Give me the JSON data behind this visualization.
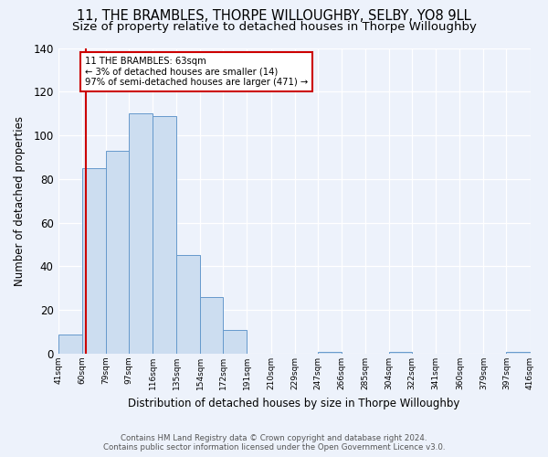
{
  "title": "11, THE BRAMBLES, THORPE WILLOUGHBY, SELBY, YO8 9LL",
  "subtitle": "Size of property relative to detached houses in Thorpe Willoughby",
  "xlabel": "Distribution of detached houses by size in Thorpe Willoughby",
  "ylabel": "Number of detached properties",
  "bin_edges": [
    41,
    60,
    79,
    97,
    116,
    135,
    154,
    172,
    191,
    210,
    229,
    247,
    266,
    285,
    304,
    322,
    341,
    360,
    379,
    397,
    416
  ],
  "bin_counts": [
    9,
    85,
    93,
    110,
    109,
    45,
    26,
    11,
    0,
    0,
    0,
    1,
    0,
    0,
    1,
    0,
    0,
    0,
    0,
    1
  ],
  "bar_facecolor": "#ccddf0",
  "bar_edgecolor": "#6699cc",
  "property_line_x": 63,
  "property_line_color": "#cc0000",
  "ylim": [
    0,
    140
  ],
  "annotation_title": "11 THE BRAMBLES: 63sqm",
  "annotation_line1": "← 3% of detached houses are smaller (14)",
  "annotation_line2": "97% of semi-detached houses are larger (471) →",
  "annotation_box_color": "#ffffff",
  "annotation_box_edgecolor": "#cc0000",
  "tick_labels": [
    "41sqm",
    "60sqm",
    "79sqm",
    "97sqm",
    "116sqm",
    "135sqm",
    "154sqm",
    "172sqm",
    "191sqm",
    "210sqm",
    "229sqm",
    "247sqm",
    "266sqm",
    "285sqm",
    "304sqm",
    "322sqm",
    "341sqm",
    "360sqm",
    "379sqm",
    "397sqm",
    "416sqm"
  ],
  "footnote1": "Contains HM Land Registry data © Crown copyright and database right 2024.",
  "footnote2": "Contains public sector information licensed under the Open Government Licence v3.0.",
  "background_color": "#edf2fb",
  "plot_background_color": "#edf2fb",
  "grid_color": "#ffffff",
  "title_fontsize": 10.5,
  "subtitle_fontsize": 9.5,
  "yticks": [
    0,
    20,
    40,
    60,
    80,
    100,
    120,
    140
  ]
}
